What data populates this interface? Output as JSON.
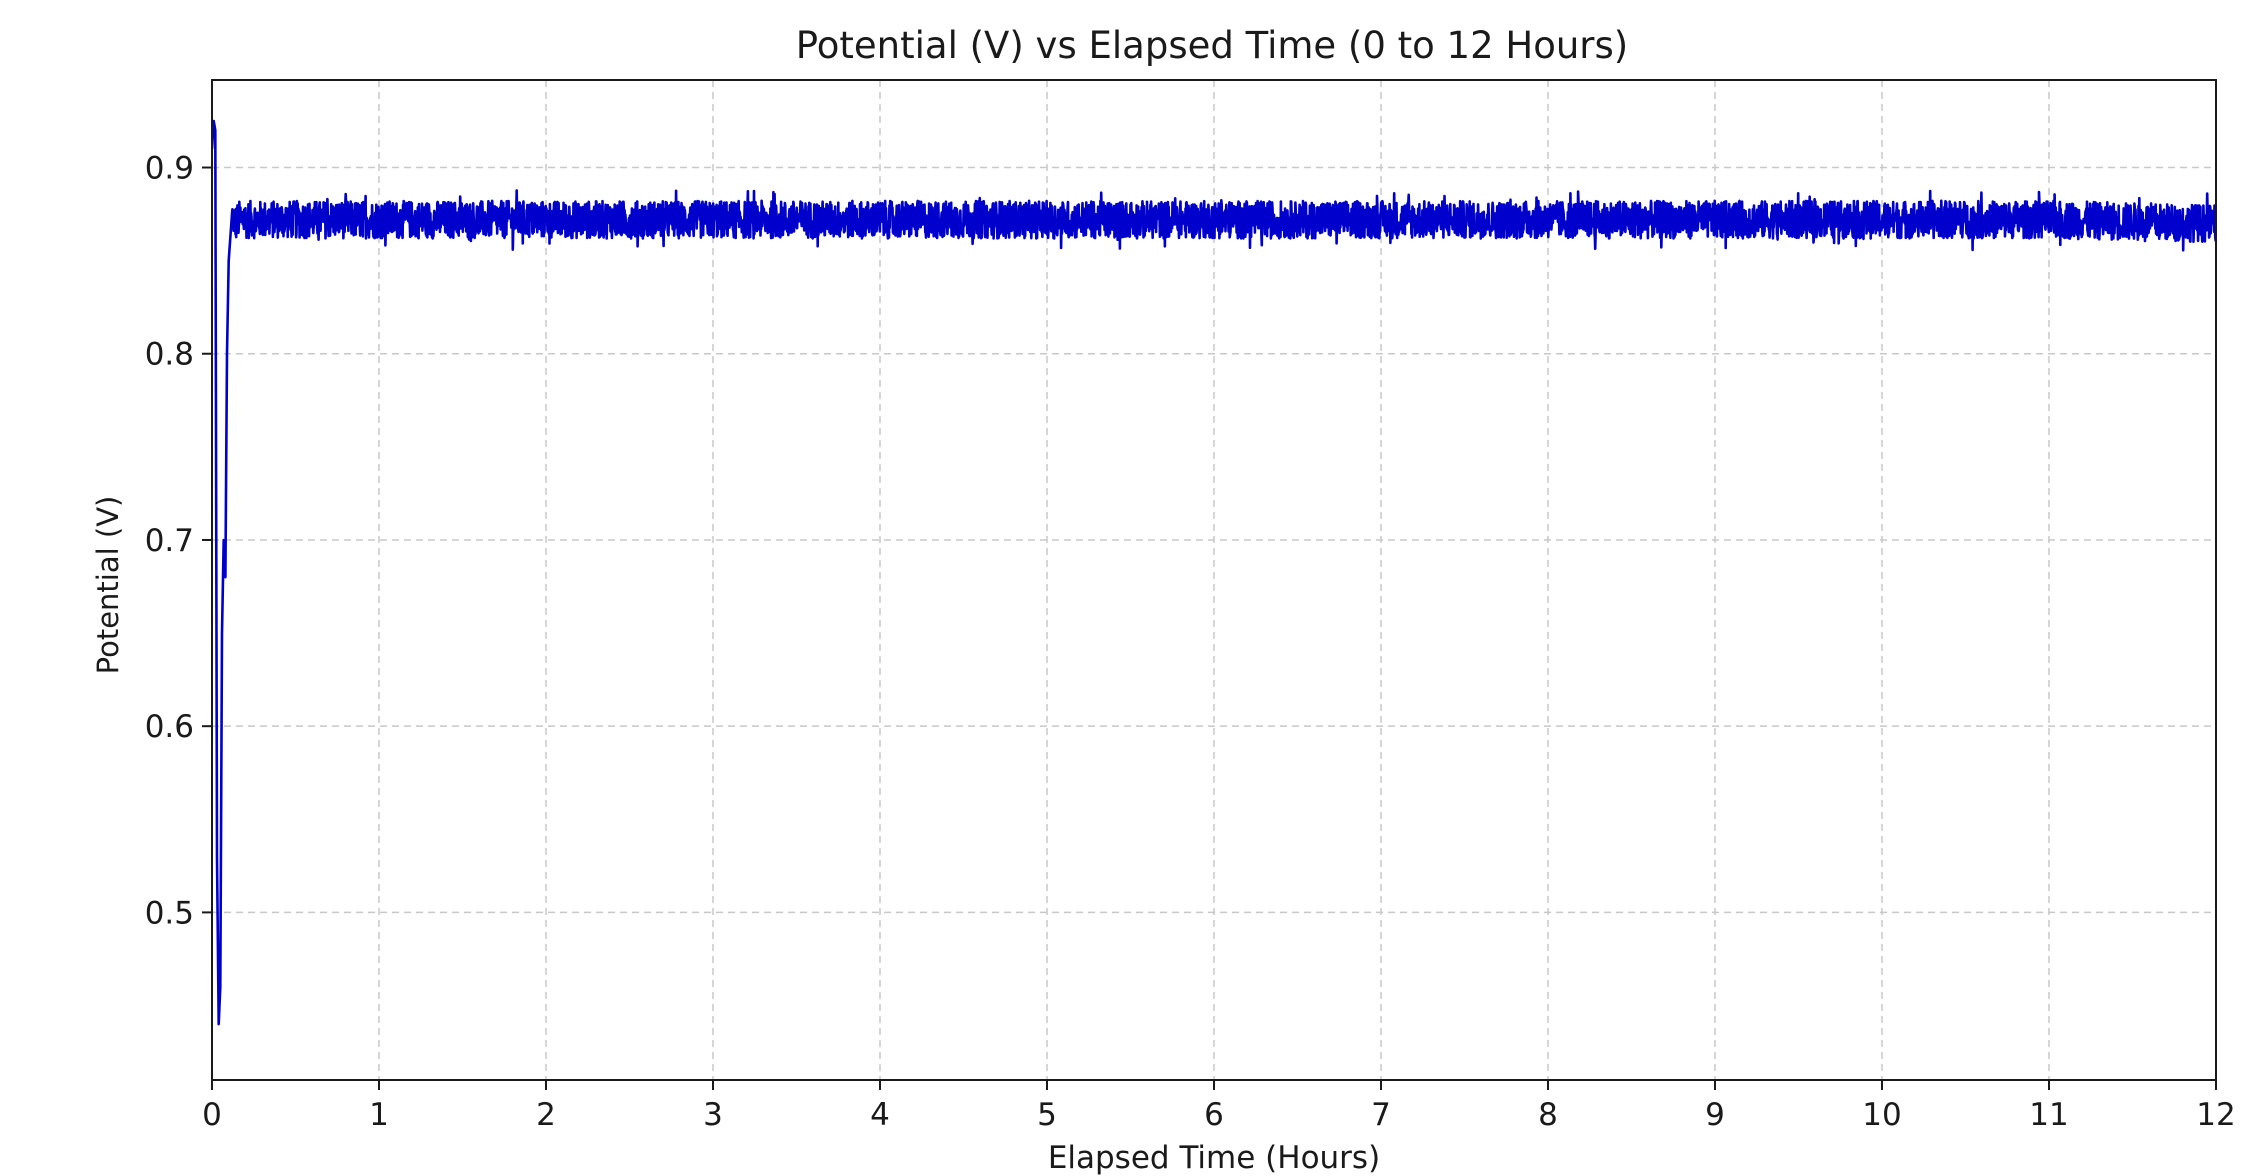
{
  "chart_data": {
    "type": "line",
    "title": "Potential (V) vs Elapsed Time (0 to 12 Hours)",
    "xlabel": "Elapsed Time (Hours)",
    "ylabel": "Potential (V)",
    "xlim": [
      0,
      12
    ],
    "ylim": [
      0.41,
      0.947
    ],
    "xticks": [
      0,
      1,
      2,
      3,
      4,
      5,
      6,
      7,
      8,
      9,
      10,
      11,
      12
    ],
    "xtick_labels": [
      "0",
      "1",
      "2",
      "3",
      "4",
      "5",
      "6",
      "7",
      "8",
      "9",
      "10",
      "11",
      "12"
    ],
    "yticks": [
      0.5,
      0.6,
      0.7,
      0.8,
      0.9
    ],
    "ytick_labels": [
      "0.5",
      "0.6",
      "0.7",
      "0.8",
      "0.9"
    ],
    "grid": true,
    "line_color": "#0000cc",
    "series": [
      {
        "x": [
          0.0,
          0.01,
          0.02,
          0.03,
          0.04,
          0.05,
          0.06,
          0.07,
          0.08,
          0.09,
          0.1,
          0.12,
          0.14,
          0.16,
          0.2,
          0.5,
          1.0,
          2.0,
          3.0,
          4.0,
          5.0,
          6.0,
          7.0,
          8.0,
          9.0,
          10.0,
          11.0,
          12.0
        ],
        "y": [
          0.91,
          0.925,
          0.92,
          0.53,
          0.44,
          0.46,
          0.65,
          0.7,
          0.68,
          0.8,
          0.85,
          0.875,
          0.87,
          0.872,
          0.872,
          0.872,
          0.872,
          0.872,
          0.872,
          0.872,
          0.872,
          0.872,
          0.872,
          0.872,
          0.872,
          0.872,
          0.872,
          0.87
        ],
        "noise_band": [
          0.859,
          0.886
        ]
      }
    ]
  }
}
